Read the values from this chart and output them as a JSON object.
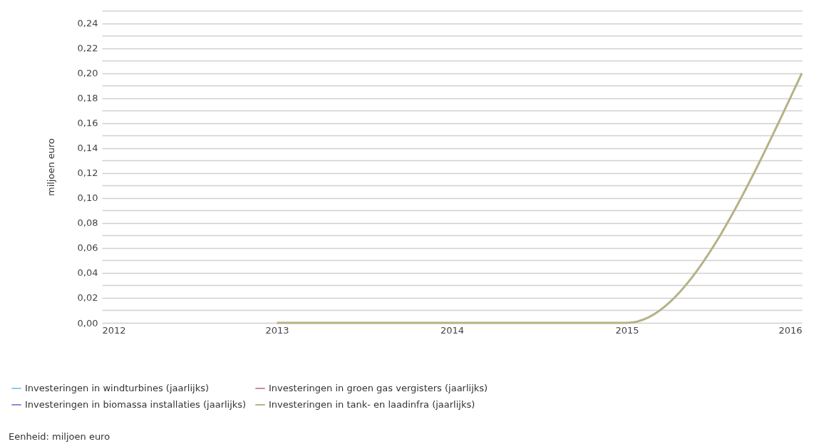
{
  "chart_data": {
    "type": "line",
    "ylabel": "miljoen euro",
    "x": [
      2013,
      2014,
      2015,
      2016
    ],
    "xlim": [
      2012,
      2016
    ],
    "xticks": [
      2012,
      2013,
      2014,
      2015,
      2016
    ],
    "ylim": [
      0,
      0.25
    ],
    "yticks": [
      {
        "value": 0,
        "label": "0,00"
      },
      {
        "value": 0.01,
        "label": null
      },
      {
        "value": 0.02,
        "label": "0,02"
      },
      {
        "value": 0.03,
        "label": null
      },
      {
        "value": 0.04,
        "label": "0,04"
      },
      {
        "value": 0.05,
        "label": null
      },
      {
        "value": 0.06,
        "label": "0,06"
      },
      {
        "value": 0.07,
        "label": null
      },
      {
        "value": 0.08,
        "label": "0,08"
      },
      {
        "value": 0.09,
        "label": null
      },
      {
        "value": 0.1,
        "label": "0,10"
      },
      {
        "value": 0.11,
        "label": null
      },
      {
        "value": 0.12,
        "label": "0,12"
      },
      {
        "value": 0.13,
        "label": null
      },
      {
        "value": 0.14,
        "label": "0,14"
      },
      {
        "value": 0.15,
        "label": null
      },
      {
        "value": 0.16,
        "label": "0,16"
      },
      {
        "value": 0.17,
        "label": null
      },
      {
        "value": 0.18,
        "label": "0,18"
      },
      {
        "value": 0.19,
        "label": null
      },
      {
        "value": 0.2,
        "label": "0,20"
      },
      {
        "value": 0.21,
        "label": null
      },
      {
        "value": 0.22,
        "label": "0,22"
      },
      {
        "value": 0.23,
        "label": null
      },
      {
        "value": 0.24,
        "label": "0,24"
      },
      {
        "value": 0.25,
        "label": null
      }
    ],
    "series": [
      {
        "name": "Investeringen in windturbines (jaarlijks)",
        "color": "#87cefa",
        "values": [
          null,
          null,
          null,
          null
        ]
      },
      {
        "name": "Investeringen in biomassa installaties (jaarlijks)",
        "color": "#a77fd8",
        "values": [
          null,
          null,
          null,
          null
        ]
      },
      {
        "name": "Investeringen in groen gas vergisters (jaarlijks)",
        "color": "#c98b9b",
        "values": [
          null,
          null,
          null,
          null
        ]
      },
      {
        "name": "Investeringen in tank- en laadinfra (jaarlijks)",
        "color": "#b5b288",
        "values": [
          0,
          0,
          0,
          0.2
        ]
      }
    ],
    "grid": "y",
    "legend": "bottom",
    "marker": "none",
    "line_style": "solid",
    "annotations": [
      "Eenheid: miljoen euro"
    ]
  }
}
